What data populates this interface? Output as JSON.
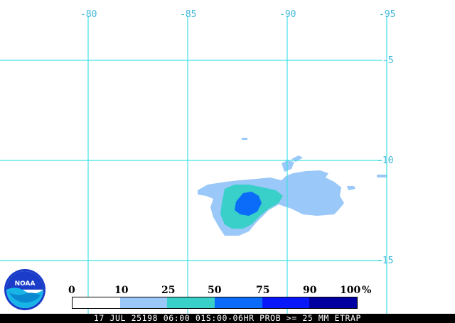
{
  "map": {
    "longitude_labels": [
      "-80",
      "-85",
      "-90",
      "-95"
    ],
    "latitude_labels": [
      "-5",
      "-10",
      "-15"
    ],
    "gridline_color": "#40e0e8",
    "label_color": "#3fb8d8"
  },
  "legend": {
    "scale_labels": [
      "0",
      "10",
      "25",
      "50",
      "75",
      "90",
      "100"
    ],
    "unit": "%",
    "colors": [
      "#ffffff",
      "#9ac8f8",
      "#38d0c8",
      "#0a6cf8",
      "#0818f8",
      "#0000a0"
    ]
  },
  "footer": {
    "text": "17 JUL 25198 06:00 01S:00-06HR PROB >= 25 MM ETRAP"
  },
  "logo": {
    "text": "NOAA"
  }
}
